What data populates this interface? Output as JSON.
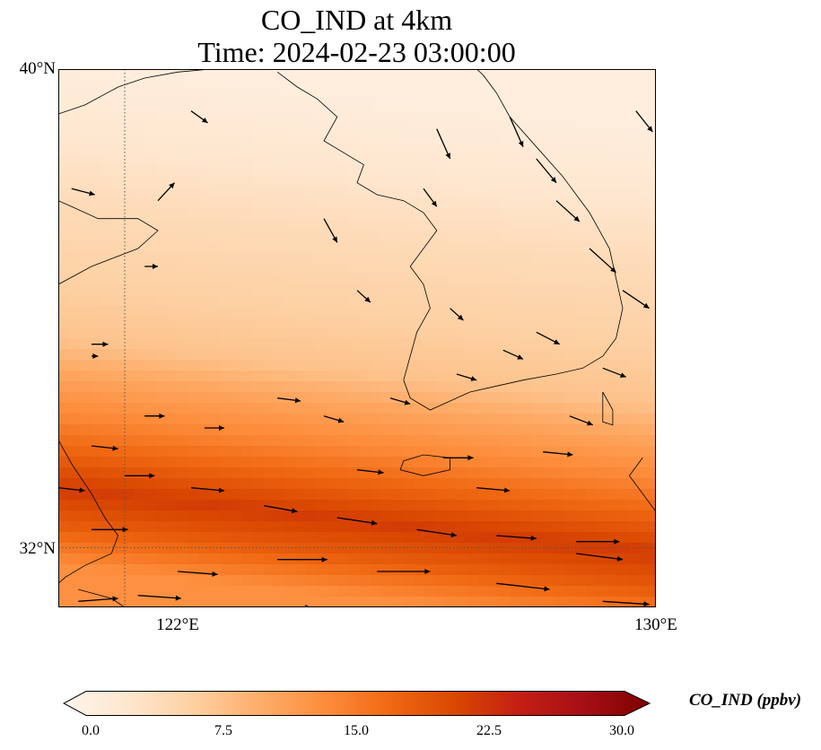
{
  "title": {
    "line1": "CO_IND at 4km",
    "line2": "Time: 2024-02-23 03:00:00"
  },
  "map": {
    "variable": "CO_IND",
    "extent": {
      "lon": [
        121,
        130
      ],
      "lat": [
        31,
        40
      ]
    },
    "gridlines": {
      "lon": [
        122
      ],
      "lat": [
        32
      ]
    },
    "lat_ticks": [
      "40°N",
      "32°N"
    ],
    "lon_ticks": [
      "122°E",
      "130°E"
    ],
    "field_description_bands": [
      {
        "lat": 39.8,
        "value": 1.5
      },
      {
        "lat": 38.5,
        "value": 3
      },
      {
        "lat": 37.3,
        "value": 5
      },
      {
        "lat": 36.0,
        "value": 6.5
      },
      {
        "lat": 35.0,
        "value": 8
      },
      {
        "lat": 34.4,
        "value": 11
      },
      {
        "lat": 33.7,
        "value": 14
      },
      {
        "lat": 33.0,
        "value": 18
      },
      {
        "lat": 32.5,
        "value": 21
      },
      {
        "lat": 31.9,
        "value": 18
      },
      {
        "lat": 31.2,
        "value": 13
      }
    ],
    "wind_vectors": [
      [
        121.2,
        38.0,
        0.35,
        -0.1
      ],
      [
        122.5,
        37.8,
        0.25,
        0.3
      ],
      [
        123.0,
        39.3,
        0.25,
        -0.2
      ],
      [
        122.3,
        36.7,
        0.2,
        0
      ],
      [
        121.5,
        35.4,
        0.25,
        0
      ],
      [
        122.3,
        34.2,
        0.3,
        0
      ],
      [
        123.2,
        34.0,
        0.3,
        0
      ],
      [
        121.5,
        33.7,
        0.4,
        -0.05
      ],
      [
        122.0,
        33.2,
        0.45,
        0
      ],
      [
        123.0,
        33.0,
        0.5,
        -0.05
      ],
      [
        124.1,
        32.7,
        0.5,
        -0.1
      ],
      [
        125.2,
        32.5,
        0.6,
        -0.1
      ],
      [
        126.4,
        32.3,
        0.6,
        -0.1
      ],
      [
        127.6,
        32.2,
        0.6,
        -0.05
      ],
      [
        128.8,
        32.1,
        0.65,
        0
      ],
      [
        121.5,
        32.3,
        0.55,
        0
      ],
      [
        122.8,
        31.6,
        0.6,
        -0.05
      ],
      [
        124.3,
        31.8,
        0.75,
        0
      ],
      [
        125.8,
        31.6,
        0.8,
        0
      ],
      [
        127.6,
        31.4,
        0.8,
        -0.1
      ],
      [
        128.8,
        31.9,
        0.7,
        -0.1
      ],
      [
        129.2,
        31.1,
        0.7,
        -0.05
      ],
      [
        121.3,
        31.1,
        0.6,
        0.05
      ],
      [
        122.2,
        31.2,
        0.65,
        -0.05
      ],
      [
        124.0,
        31.0,
        0.8,
        0
      ],
      [
        126.4,
        30.8,
        0.7,
        -0.05
      ],
      [
        128.0,
        30.8,
        0.75,
        -0.1
      ],
      [
        121.0,
        33.0,
        0.4,
        -0.05
      ],
      [
        124.3,
        34.5,
        0.35,
        -0.05
      ],
      [
        125.0,
        34.2,
        0.3,
        -0.1
      ],
      [
        127.0,
        34.9,
        0.3,
        -0.1
      ],
      [
        127.7,
        35.3,
        0.3,
        -0.15
      ],
      [
        128.2,
        35.6,
        0.35,
        -0.2
      ],
      [
        128.7,
        34.2,
        0.35,
        -0.15
      ],
      [
        129.2,
        35.0,
        0.35,
        -0.15
      ],
      [
        125.5,
        33.3,
        0.4,
        -0.05
      ],
      [
        126.8,
        33.5,
        0.45,
        0
      ],
      [
        128.3,
        33.6,
        0.45,
        -0.05
      ],
      [
        127.3,
        33.0,
        0.5,
        -0.05
      ],
      [
        121.5,
        35.2,
        0.1,
        0
      ],
      [
        125.0,
        37.5,
        0.2,
        -0.4
      ],
      [
        126.5,
        38.0,
        0.2,
        -0.3
      ],
      [
        126.7,
        39.0,
        0.2,
        -0.5
      ],
      [
        127.8,
        39.2,
        0.2,
        -0.5
      ],
      [
        128.2,
        38.5,
        0.3,
        -0.4
      ],
      [
        128.5,
        37.8,
        0.35,
        -0.35
      ],
      [
        129.0,
        37.0,
        0.4,
        -0.4
      ],
      [
        129.5,
        36.3,
        0.4,
        -0.3
      ],
      [
        129.7,
        39.3,
        0.25,
        -0.35
      ],
      [
        125.5,
        36.3,
        0.2,
        -0.2
      ],
      [
        126.0,
        34.5,
        0.3,
        -0.1
      ],
      [
        126.9,
        36.0,
        0.2,
        -0.2
      ]
    ]
  },
  "colorbar": {
    "label": "CO_IND (ppbv)",
    "ticks": [
      "0.0",
      "7.5",
      "15.0",
      "22.5",
      "30.0"
    ],
    "range": [
      0,
      30
    ],
    "colors": [
      "#fff5eb",
      "#fee6ce",
      "#fdd0a2",
      "#fdae6b",
      "#fd8d3c",
      "#f16913",
      "#d94801",
      "#c41e14",
      "#a50f15",
      "#7f0000"
    ]
  }
}
